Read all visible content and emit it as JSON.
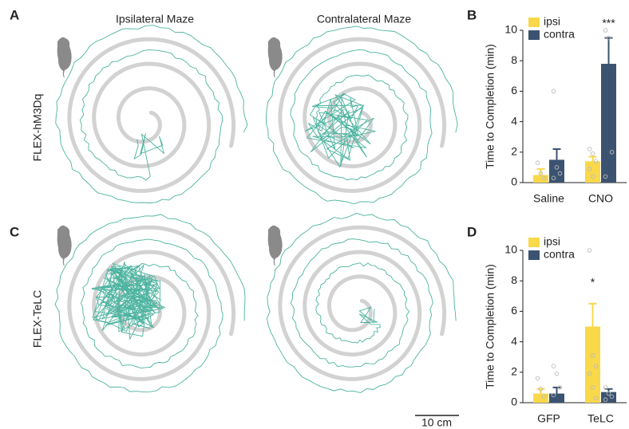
{
  "figure": {
    "panel_labels": [
      "A",
      "B",
      "C",
      "D"
    ],
    "maze_titles": [
      "Ipsilateral Maze",
      "Contralateral Maze"
    ],
    "row_labels": [
      "FLEX-hM3Dq",
      "FLEX-TeLC"
    ],
    "scale_bar": "10 cm"
  },
  "chart_data": [
    {
      "type": "bar",
      "y_label": "Time to Completion (min)",
      "categories": [
        "Saline",
        "CNO"
      ],
      "ylim": [
        0,
        10
      ],
      "yticks": [
        0,
        2,
        4,
        6,
        8,
        10
      ],
      "legend": "top-left",
      "series": [
        {
          "name": "ipsi",
          "color": "#f9d84a",
          "values": [
            0.5,
            1.4
          ],
          "errors": [
            0.4,
            0.3
          ],
          "points": [
            [
              1.3,
              0.6,
              0.3
            ],
            [
              2.2,
              1.9,
              1.4,
              0.9,
              0.4
            ]
          ]
        },
        {
          "name": "contra",
          "color": "#3b5370",
          "values": [
            1.5,
            7.8
          ],
          "errors": [
            0.7,
            1.7
          ],
          "points": [
            [
              6.0,
              1.0,
              0.6,
              0.3
            ],
            [
              10.0,
              9.5,
              2.0,
              0.4
            ]
          ]
        }
      ],
      "annotations": [
        {
          "text": "***",
          "series": 1,
          "category": 1
        }
      ]
    },
    {
      "type": "bar",
      "y_label": "Time to Completion (min)",
      "categories": [
        "GFP",
        "TeLC"
      ],
      "ylim": [
        0,
        10
      ],
      "yticks": [
        0,
        2,
        4,
        6,
        8,
        10
      ],
      "legend": "top-left",
      "series": [
        {
          "name": "ipsi",
          "color": "#f9d84a",
          "values": [
            0.6,
            5.0
          ],
          "errors": [
            0.3,
            1.5
          ],
          "points": [
            [
              1.6,
              0.9,
              0.4
            ],
            [
              10.0,
              3.1,
              2.4,
              1.9,
              1.0,
              0.3
            ]
          ]
        },
        {
          "name": "contra",
          "color": "#3b5370",
          "values": [
            0.6,
            0.7
          ],
          "errors": [
            0.4,
            0.2
          ],
          "points": [
            [
              2.4,
              1.9,
              1.0,
              0.5
            ],
            [
              1.0,
              0.6,
              0.4,
              0.2
            ]
          ]
        }
      ],
      "annotations": [
        {
          "text": "*",
          "series": 0,
          "category": 1
        }
      ]
    }
  ]
}
